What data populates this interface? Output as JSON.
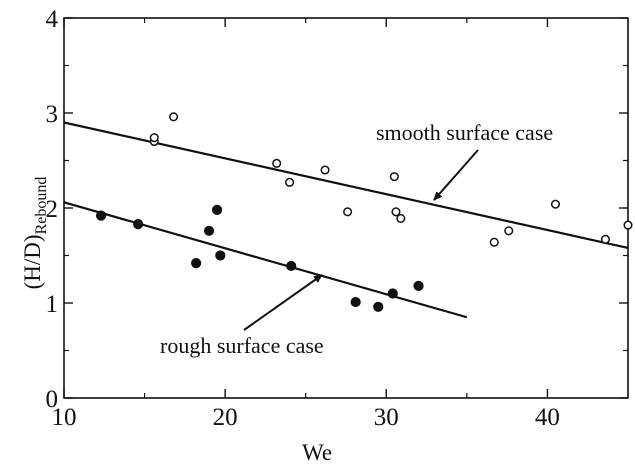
{
  "chart_data": {
    "type": "scatter",
    "xlabel": "We",
    "ylabel": "(H/D)",
    "ylabel_subscript": "Rebound",
    "xlim": [
      10,
      45
    ],
    "ylim": [
      0,
      4
    ],
    "xticks": [
      10,
      20,
      30,
      40
    ],
    "yticks": [
      0,
      1,
      2,
      3,
      4
    ],
    "grid": false,
    "series": [
      {
        "name": "smooth surface case",
        "marker": "open-circle",
        "points": [
          [
            15.6,
            2.7
          ],
          [
            15.6,
            2.74
          ],
          [
            16.8,
            2.96
          ],
          [
            23.2,
            2.47
          ],
          [
            24.0,
            2.27
          ],
          [
            26.2,
            2.4
          ],
          [
            27.6,
            1.96
          ],
          [
            30.5,
            2.33
          ],
          [
            30.6,
            1.96
          ],
          [
            30.9,
            1.89
          ],
          [
            36.7,
            1.64
          ],
          [
            37.6,
            1.76
          ],
          [
            40.5,
            2.04
          ],
          [
            43.6,
            1.67
          ],
          [
            45.0,
            1.82
          ]
        ],
        "fit": {
          "x": [
            10,
            45
          ],
          "y": [
            2.9,
            1.58
          ]
        }
      },
      {
        "name": "rough surface case",
        "marker": "filled-circle",
        "points": [
          [
            12.3,
            1.92
          ],
          [
            14.6,
            1.83
          ],
          [
            18.2,
            1.42
          ],
          [
            19.0,
            1.76
          ],
          [
            19.5,
            1.98
          ],
          [
            19.7,
            1.5
          ],
          [
            24.1,
            1.39
          ],
          [
            28.1,
            1.01
          ],
          [
            29.5,
            0.96
          ],
          [
            30.4,
            1.1
          ],
          [
            32.0,
            1.18
          ]
        ],
        "fit": {
          "x": [
            10,
            35
          ],
          "y": [
            2.06,
            0.85
          ]
        }
      }
    ],
    "annotations": [
      {
        "text": "smooth surface case",
        "target_series": 0
      },
      {
        "text": "rough surface case",
        "target_series": 1
      }
    ]
  }
}
